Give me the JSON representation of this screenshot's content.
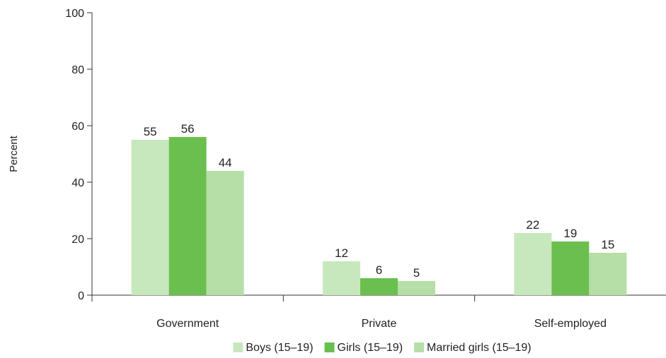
{
  "chart_data": {
    "type": "bar",
    "categories": [
      "Government",
      "Private",
      "Self-employed"
    ],
    "series": [
      {
        "name": "Boys (15–19)",
        "values": [
          55,
          12,
          22
        ],
        "color": "#c7e8bd"
      },
      {
        "name": "Girls (15–19)",
        "values": [
          56,
          6,
          19
        ],
        "color": "#6bbf4e"
      },
      {
        "name": "Married girls (15–19)",
        "values": [
          44,
          5,
          15
        ],
        "color": "#b5dfa6"
      }
    ],
    "data_labels": [
      [
        "55",
        "12",
        "22"
      ],
      [
        "56",
        "6",
        "19"
      ],
      [
        "44",
        "5",
        "15"
      ]
    ],
    "ylabel": "Percent",
    "xlabel": "",
    "ylim": [
      0,
      100
    ],
    "yticks": [
      0,
      20,
      40,
      60,
      80,
      100
    ],
    "legend": "bottom",
    "grid": false
  }
}
